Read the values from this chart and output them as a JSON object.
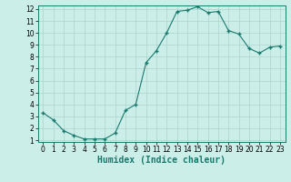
{
  "x": [
    0,
    1,
    2,
    3,
    4,
    5,
    6,
    7,
    8,
    9,
    10,
    11,
    12,
    13,
    14,
    15,
    16,
    17,
    18,
    19,
    20,
    21,
    22,
    23
  ],
  "y": [
    3.3,
    2.7,
    1.8,
    1.4,
    1.1,
    1.1,
    1.1,
    1.6,
    3.5,
    4.0,
    7.5,
    8.5,
    10.0,
    11.8,
    11.9,
    12.2,
    11.7,
    11.8,
    10.2,
    9.9,
    8.7,
    8.3,
    8.8,
    8.9
  ],
  "xlabel": "Humidex (Indice chaleur)",
  "ylim_min": 1,
  "ylim_max": 12,
  "xlim_min": 0,
  "xlim_max": 23,
  "yticks": [
    1,
    2,
    3,
    4,
    5,
    6,
    7,
    8,
    9,
    10,
    11,
    12
  ],
  "xticks": [
    0,
    1,
    2,
    3,
    4,
    5,
    6,
    7,
    8,
    9,
    10,
    11,
    12,
    13,
    14,
    15,
    16,
    17,
    18,
    19,
    20,
    21,
    22,
    23
  ],
  "line_color": "#1a7a6e",
  "marker": "+",
  "bg_color": "#cceee8",
  "grid_color": "#aad4cc",
  "tick_fontsize": 5.5,
  "xlabel_fontsize": 7,
  "linewidth": 0.8,
  "markersize": 3,
  "markeredgewidth": 1.0
}
